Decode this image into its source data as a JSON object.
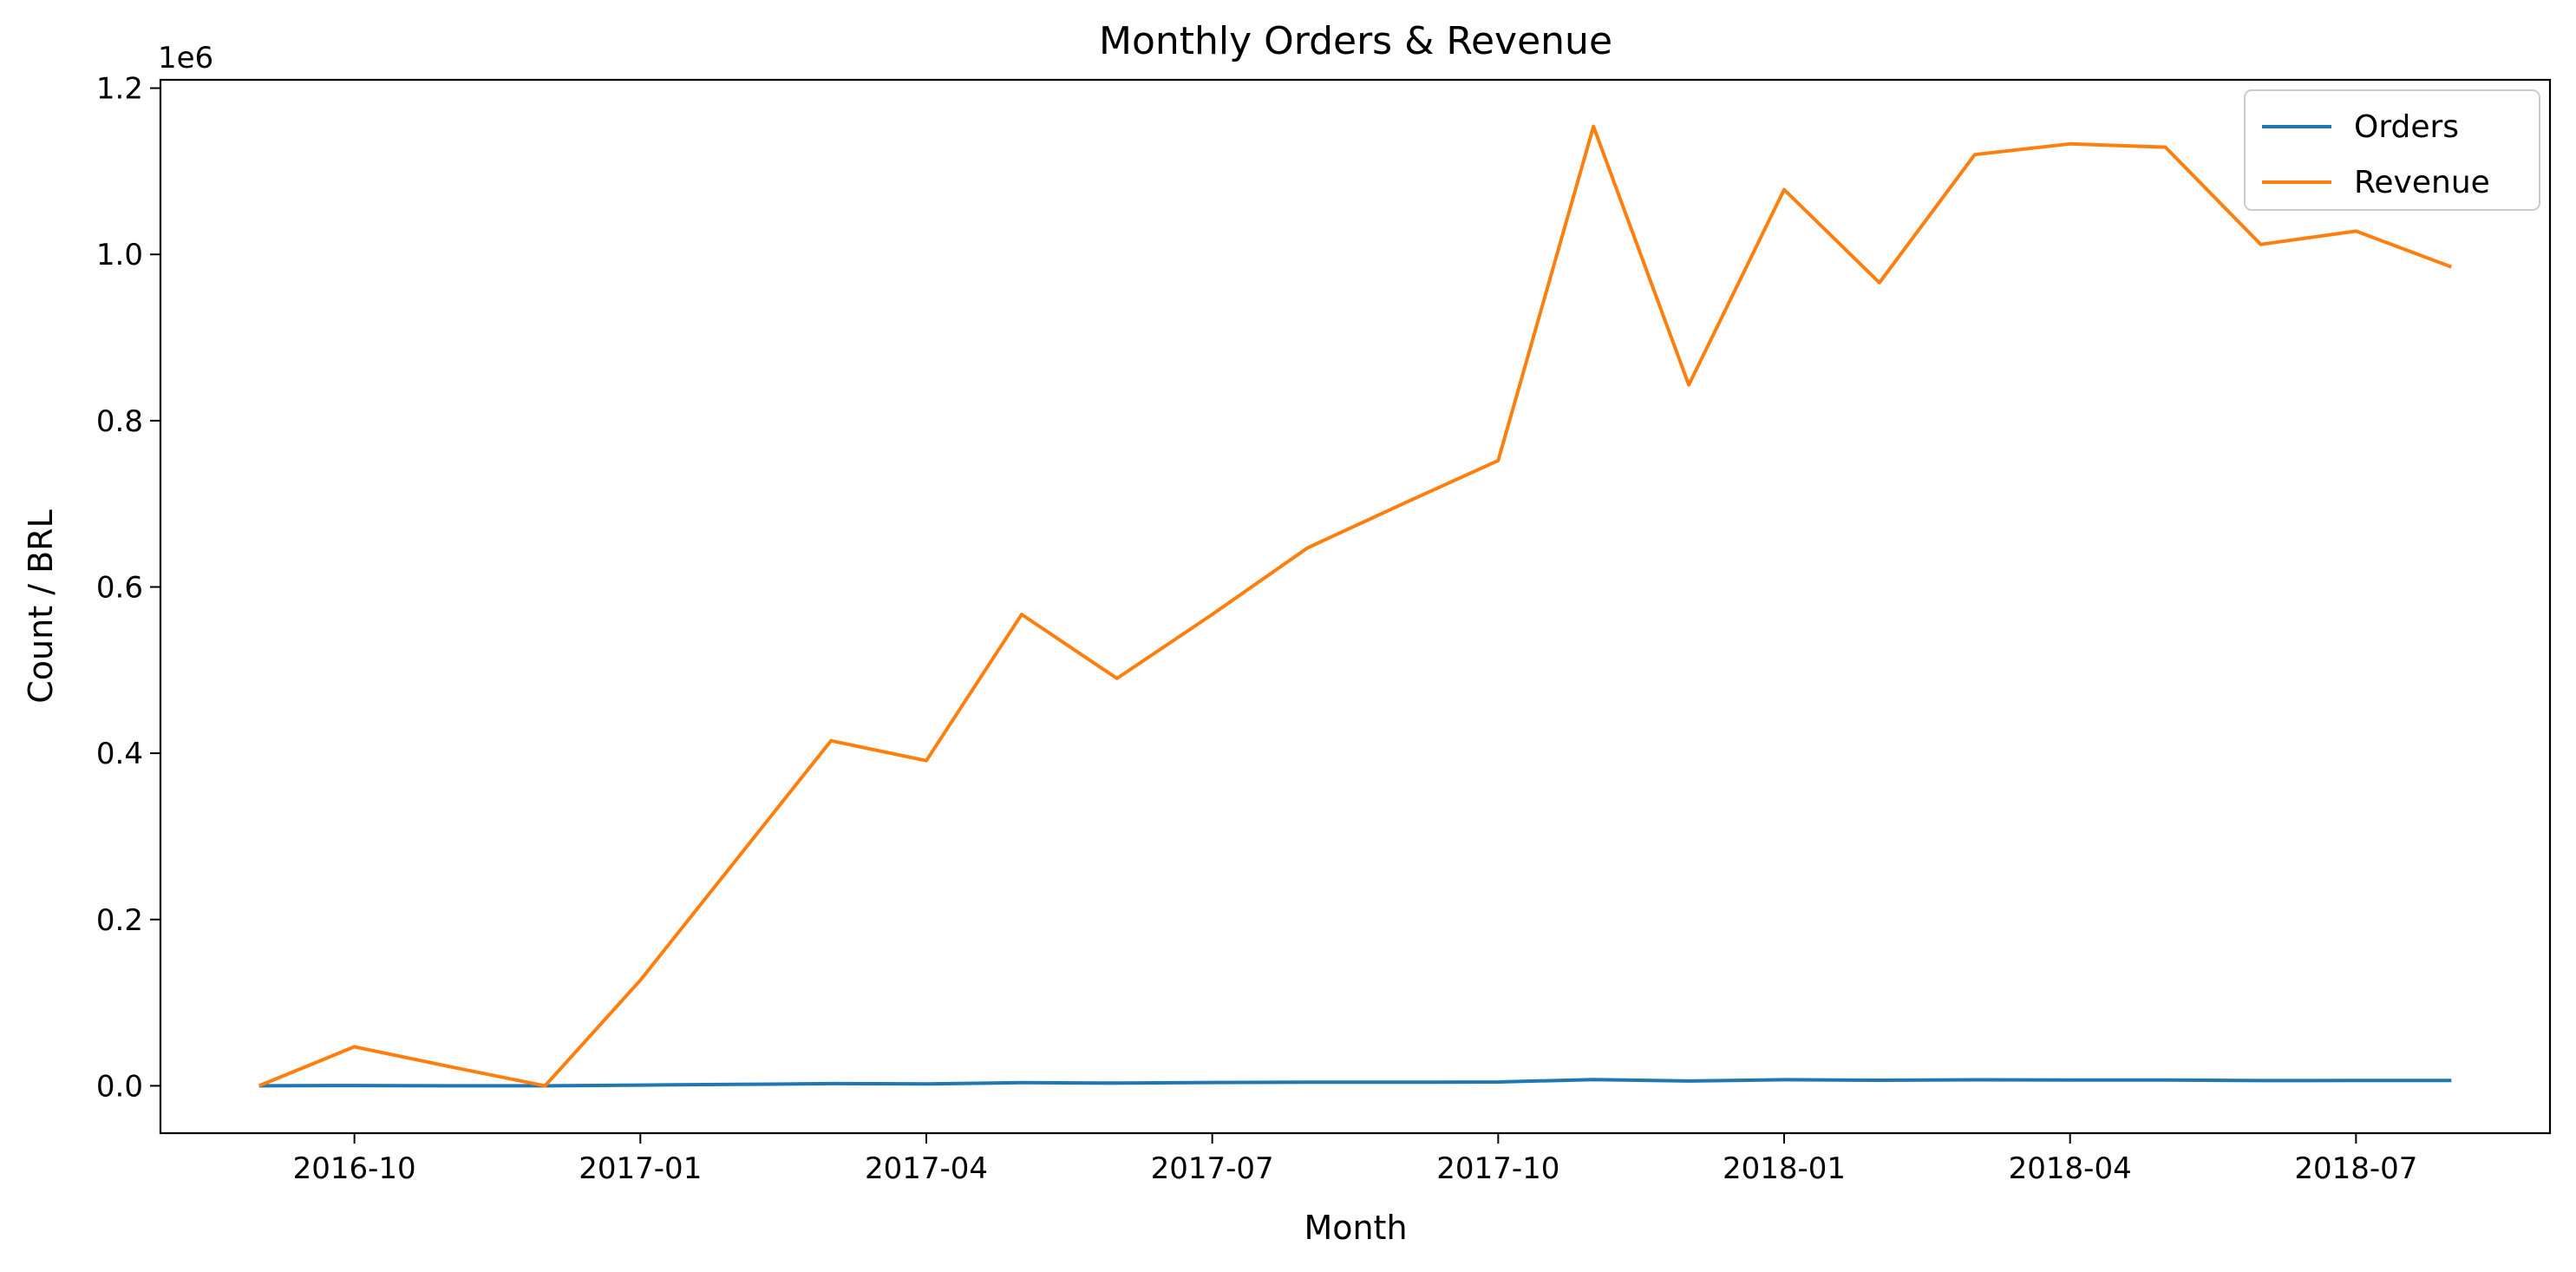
{
  "chart_data": {
    "type": "line",
    "title": "Monthly Orders & Revenue",
    "xlabel": "Month",
    "ylabel": "Count / BRL",
    "y_multiplier_label": "1e6",
    "ylim": [
      -0.057,
      1.21
    ],
    "y_ticks": [
      {
        "value": 0.0,
        "label": "0.0"
      },
      {
        "value": 0.2,
        "label": "0.2"
      },
      {
        "value": 0.4,
        "label": "0.4"
      },
      {
        "value": 0.6,
        "label": "0.6"
      },
      {
        "value": 0.8,
        "label": "0.8"
      },
      {
        "value": 1.0,
        "label": "1.0"
      },
      {
        "value": 1.2,
        "label": "1.2"
      }
    ],
    "x_ticks": [
      "2016-10",
      "2017-01",
      "2017-04",
      "2017-07",
      "2017-10",
      "2018-01",
      "2018-04",
      "2018-07"
    ],
    "x": [
      "2016-09",
      "2016-10",
      "2016-11",
      "2016-12",
      "2017-01",
      "2017-02",
      "2017-03",
      "2017-04",
      "2017-05",
      "2017-06",
      "2017-07",
      "2017-08",
      "2017-09",
      "2017-10",
      "2017-11",
      "2017-12",
      "2018-01",
      "2018-02",
      "2018-03",
      "2018-04",
      "2018-05",
      "2018-06",
      "2018-07",
      "2018-08"
    ],
    "series": [
      {
        "name": "Orders",
        "color": "#1f77b4",
        "values": [
          0.0,
          0.0003,
          0.0,
          0.0,
          0.0008,
          0.0017,
          0.0026,
          0.0023,
          0.0037,
          0.0032,
          0.004,
          0.0043,
          0.0043,
          0.0046,
          0.0075,
          0.0057,
          0.0073,
          0.0067,
          0.0072,
          0.0069,
          0.0069,
          0.0062,
          0.0063,
          0.0065
        ]
      },
      {
        "name": "Revenue",
        "color": "#ff7f0e",
        "values": [
          0.0,
          0.047,
          0.023,
          0.0,
          0.127,
          0.271,
          0.415,
          0.391,
          0.567,
          0.49,
          0.567,
          0.647,
          0.7,
          0.752,
          1.154,
          0.843,
          1.078,
          0.966,
          1.12,
          1.133,
          1.129,
          1.012,
          1.028,
          0.985
        ]
      }
    ],
    "legend_position": "top-right",
    "grid": false
  }
}
